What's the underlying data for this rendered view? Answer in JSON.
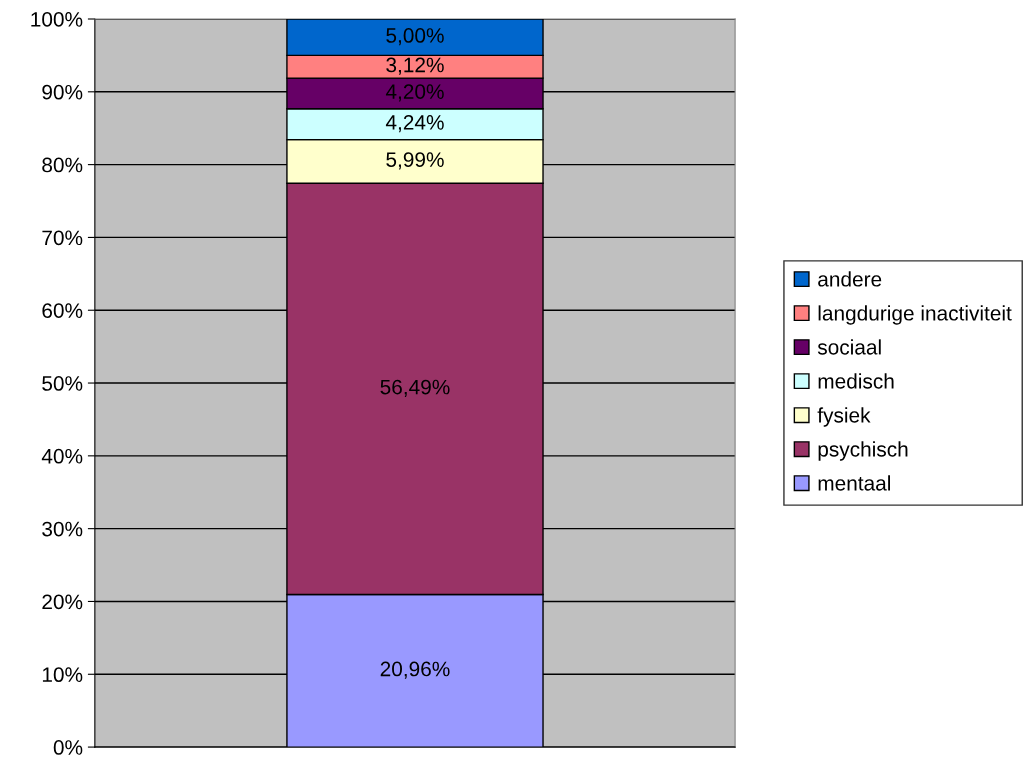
{
  "chart_data": {
    "type": "bar",
    "stacked": true,
    "categories": [
      null
    ],
    "series": [
      {
        "name": "mentaal",
        "color": "#9999ff",
        "values": [
          20.96
        ],
        "value_labels": [
          "20,96%"
        ]
      },
      {
        "name": "psychisch",
        "color": "#993366",
        "values": [
          56.49
        ],
        "value_labels": [
          "56,49%"
        ]
      },
      {
        "name": "fysiek",
        "color": "#ffffcc",
        "values": [
          5.99
        ],
        "value_labels": [
          "5,99%"
        ]
      },
      {
        "name": "medisch",
        "color": "#ccffff",
        "values": [
          4.24
        ],
        "value_labels": [
          "4,24%"
        ]
      },
      {
        "name": "sociaal",
        "color": "#660066",
        "values": [
          4.2
        ],
        "value_labels": [
          "4,20%"
        ]
      },
      {
        "name": "langdurige inactiviteit",
        "color": "#ff8080",
        "values": [
          3.12
        ],
        "value_labels": [
          "3,12%"
        ]
      },
      {
        "name": "andere",
        "color": "#0066cc",
        "values": [
          5.0
        ],
        "value_labels": [
          "5,00%"
        ]
      }
    ],
    "ylim": [
      0,
      100
    ],
    "yticks": [
      {
        "value": 0,
        "label": "0%"
      },
      {
        "value": 10,
        "label": "10%"
      },
      {
        "value": 20,
        "label": "20%"
      },
      {
        "value": 30,
        "label": "30%"
      },
      {
        "value": 40,
        "label": "40%"
      },
      {
        "value": 50,
        "label": "50%"
      },
      {
        "value": 60,
        "label": "60%"
      },
      {
        "value": 70,
        "label": "70%"
      },
      {
        "value": 80,
        "label": "80%"
      },
      {
        "value": 90,
        "label": "90%"
      },
      {
        "value": 100,
        "label": "100%"
      }
    ],
    "grid": "y",
    "legend": "right",
    "tick_labels": "y"
  }
}
